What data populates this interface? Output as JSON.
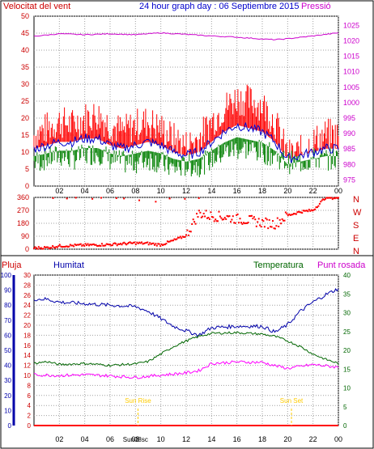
{
  "header": {
    "left": "Velocitat del vent",
    "center": "24 hour graph day : 06 Septiembre 2015",
    "right": "Pressió"
  },
  "colors": {
    "wind_gust": "#ff0000",
    "wind_avg": "#0000cc",
    "wind_low": "#008000",
    "pressure": "#cc00cc",
    "direction": "#ff0000",
    "humidity": "#0000aa",
    "temperature": "#006600",
    "dewpoint": "#ff00ff",
    "rain": "#ff0000",
    "sun": "#ffcc00",
    "grid": "#a0a0a0"
  },
  "bottom_labels": {
    "rain": "Pluja",
    "humidity": "Humitat",
    "temperature": "Temperatura",
    "dewpoint": "Punt rosada",
    "sunrise": "Sun Rise",
    "sunset": "Sun Set"
  },
  "chart_data": [
    {
      "type": "line",
      "name": "wind_pressure",
      "x_ticks": [
        "02",
        "04",
        "06",
        "08",
        "10",
        "12",
        "14",
        "16",
        "18",
        "20",
        "22",
        "00"
      ],
      "y_left_ticks": [
        0,
        5,
        10,
        15,
        20,
        25,
        30,
        35,
        40,
        45,
        50
      ],
      "y_right_ticks": [
        975,
        980,
        985,
        990,
        995,
        1000,
        1005,
        1010,
        1015,
        1020,
        1025
      ],
      "ylim_left": [
        0,
        50
      ],
      "ylim_right": [
        973,
        1028
      ],
      "series": [
        {
          "name": "Velocitat del vent",
          "axis": "left",
          "kind": "gust",
          "hours": [
            0,
            1,
            2,
            3,
            4,
            5,
            6,
            7,
            8,
            9,
            10,
            11,
            12,
            13,
            14,
            15,
            16,
            17,
            18,
            19,
            20,
            21,
            22,
            23,
            24
          ],
          "values": [
            15,
            17,
            19,
            18,
            20,
            21,
            18,
            16,
            18,
            19,
            17,
            14,
            12,
            14,
            19,
            23,
            26,
            25,
            24,
            19,
            9,
            10,
            13,
            15,
            15
          ]
        },
        {
          "name": "avg",
          "axis": "left",
          "kind": "avg",
          "hours": [
            0,
            1,
            2,
            3,
            4,
            5,
            6,
            7,
            8,
            9,
            10,
            11,
            12,
            13,
            14,
            15,
            16,
            17,
            18,
            19,
            20,
            21,
            22,
            23,
            24
          ],
          "values": [
            11,
            12,
            13,
            13,
            14,
            14,
            12,
            11,
            12,
            13,
            12,
            10,
            9,
            10,
            13,
            16,
            18,
            17,
            16,
            13,
            8,
            9,
            10,
            11,
            11
          ]
        },
        {
          "name": "low",
          "axis": "left",
          "kind": "low",
          "hours": [
            0,
            1,
            2,
            3,
            4,
            5,
            6,
            7,
            8,
            9,
            10,
            11,
            12,
            13,
            14,
            15,
            16,
            17,
            18,
            19,
            20,
            21,
            22,
            23,
            24
          ],
          "values": [
            7,
            8,
            9,
            8,
            9,
            10,
            8,
            7,
            7,
            8,
            7,
            5,
            6,
            6,
            8,
            10,
            11,
            11,
            10,
            9,
            7,
            7,
            8,
            8,
            8
          ]
        },
        {
          "name": "Pressió",
          "axis": "right",
          "kind": "line",
          "hours": [
            0,
            2,
            4,
            6,
            8,
            10,
            12,
            14,
            16,
            18,
            19,
            20,
            22,
            24
          ],
          "values": [
            1021.5,
            1022.3,
            1022.0,
            1022.3,
            1022.0,
            1022.6,
            1022.1,
            1021.6,
            1021.2,
            1020.6,
            1020.4,
            1020.7,
            1021.6,
            1022.6
          ]
        }
      ]
    },
    {
      "type": "scatter",
      "name": "wind_direction",
      "x_ticks": [
        "02",
        "04",
        "06",
        "08",
        "10",
        "12",
        "14",
        "16",
        "18",
        "20",
        "22",
        "00"
      ],
      "y_left_ticks": [
        0,
        90,
        180,
        270,
        360
      ],
      "y_right_labels": [
        "N",
        "W",
        "S",
        "E",
        "N"
      ],
      "ylim": [
        0,
        360
      ],
      "series": [
        {
          "name": "direction",
          "hours": [
            0,
            1,
            2,
            3,
            4,
            5,
            6,
            7,
            8,
            9,
            10,
            11,
            12,
            13,
            14,
            15,
            16,
            17,
            18,
            19,
            20,
            21,
            22,
            23,
            24
          ],
          "values": [
            8,
            10,
            22,
            25,
            28,
            30,
            32,
            38,
            42,
            40,
            30,
            60,
            95,
            250,
            230,
            225,
            210,
            200,
            185,
            175,
            235,
            260,
            270,
            360,
            355
          ]
        },
        {
          "name": "direction_outliers",
          "hours": [
            1.5,
            2.6,
            3.3,
            4.6,
            5.3,
            6.5,
            7.1,
            8.3,
            9.6,
            10.7,
            11.9,
            13.0
          ],
          "values": [
            355,
            352,
            358,
            350,
            357,
            355,
            352,
            340,
            330,
            352,
            350,
            355
          ]
        }
      ]
    },
    {
      "type": "line",
      "name": "temperature_humidity",
      "x_ticks": [
        "02",
        "04",
        "06",
        "08",
        "10",
        "12",
        "14",
        "16",
        "18",
        "20",
        "22",
        "00"
      ],
      "y_left_ticks": [
        0,
        10,
        20,
        30,
        40,
        50,
        60,
        70,
        80,
        90,
        100
      ],
      "y_rain_ticks": [
        0,
        2,
        4,
        6,
        8,
        10,
        12,
        14,
        16,
        18,
        20,
        22,
        24,
        26,
        28,
        30
      ],
      "y_right_ticks": [
        0,
        5,
        10,
        15,
        20,
        25,
        30,
        35,
        40
      ],
      "ylim_humidity": [
        0,
        100
      ],
      "ylim_temp": [
        0,
        40
      ],
      "series": [
        {
          "name": "Humitat",
          "axis": "humidity",
          "hours": [
            0,
            1,
            2,
            4,
            6,
            8,
            9,
            10,
            11,
            12,
            13,
            14,
            16,
            18,
            19,
            20,
            21,
            22,
            23,
            24
          ],
          "values": [
            84,
            84,
            82,
            81,
            80,
            79,
            76,
            71,
            66,
            63,
            60,
            65,
            66,
            66,
            62,
            67,
            76,
            82,
            87,
            91
          ]
        },
        {
          "name": "Temperatura",
          "axis": "temp",
          "hours": [
            0,
            1,
            2,
            4,
            6,
            8,
            9,
            10,
            11,
            12,
            13,
            14,
            16,
            18,
            19,
            20,
            21,
            22,
            23,
            24
          ],
          "values": [
            16.5,
            17.0,
            16.2,
            16.5,
            16.0,
            16.4,
            17.0,
            19.0,
            21.0,
            22.5,
            23.7,
            24.5,
            24.7,
            24.3,
            23.7,
            22.5,
            21.0,
            19.0,
            17.6,
            16.5
          ]
        },
        {
          "name": "Punt rosada",
          "axis": "temp",
          "hours": [
            0,
            2,
            4,
            6,
            8,
            10,
            12,
            13,
            14,
            16,
            18,
            19,
            20,
            22,
            24
          ],
          "values": [
            13.5,
            13.3,
            13.5,
            13.2,
            12.8,
            13.4,
            14.0,
            14.6,
            16.5,
            16.9,
            16.8,
            15.9,
            15.2,
            16.2,
            15.5
          ]
        },
        {
          "name": "Pluja",
          "axis": "rain",
          "hours": [
            0,
            24
          ],
          "values": [
            0,
            0
          ]
        }
      ],
      "sun_events": [
        {
          "label": "Sun Rise",
          "hour": 8.2
        },
        {
          "label": "Sun Set",
          "hour": 20.3
        }
      ],
      "extra_x_label": "Sun08sc"
    }
  ]
}
